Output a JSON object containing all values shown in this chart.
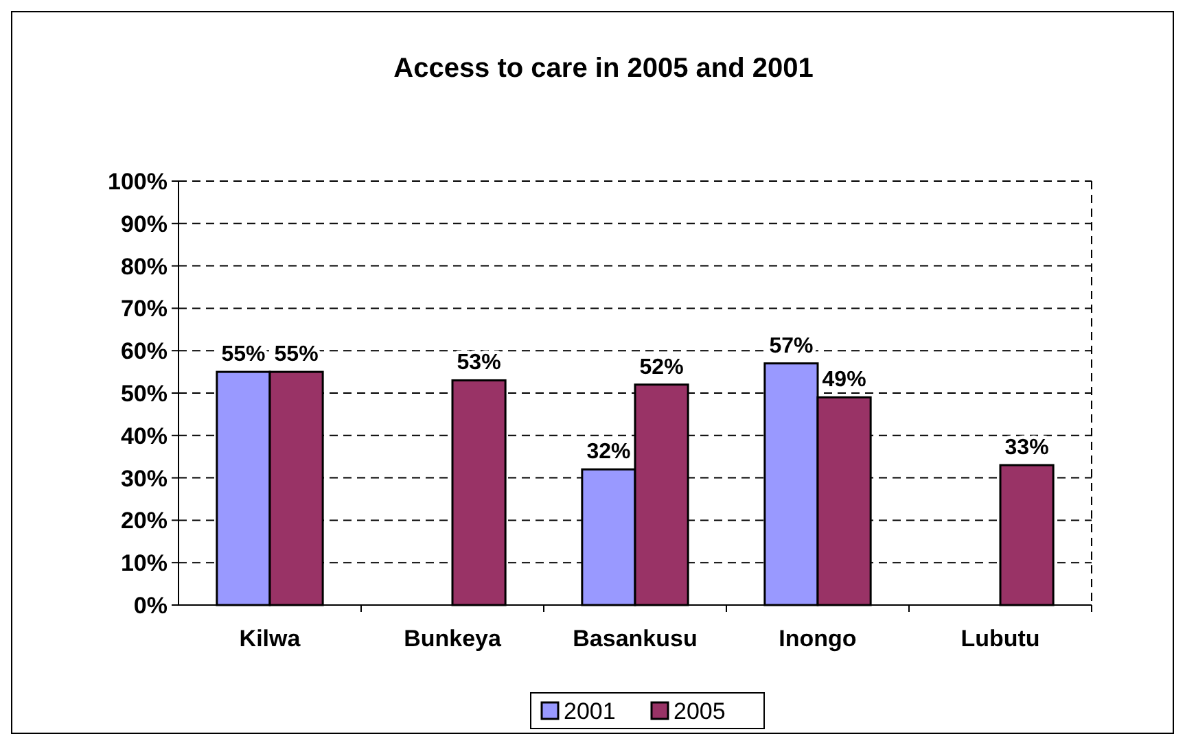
{
  "chart_data": {
    "type": "bar",
    "title": "Access to care in 2005 and 2001",
    "categories": [
      "Kilwa",
      "Bunkeya",
      "Basankusu",
      "Inongo",
      "Lubutu"
    ],
    "series": [
      {
        "name": "2001",
        "color": "#9999ff",
        "values": [
          55,
          null,
          32,
          57,
          null
        ],
        "value_labels": [
          "55%",
          null,
          "32%",
          "57%",
          null
        ]
      },
      {
        "name": "2005",
        "color": "#993366",
        "values": [
          55,
          53,
          52,
          49,
          33
        ],
        "value_labels": [
          "55%",
          "53%",
          "52%",
          "49%",
          "33%"
        ]
      }
    ],
    "ylim": [
      0,
      100
    ],
    "yticks": [
      {
        "value": 0,
        "label": "0%"
      },
      {
        "value": 10,
        "label": "10%"
      },
      {
        "value": 20,
        "label": "20%"
      },
      {
        "value": 30,
        "label": "30%"
      },
      {
        "value": 40,
        "label": "40%"
      },
      {
        "value": 50,
        "label": "50%"
      },
      {
        "value": 60,
        "label": "60%"
      },
      {
        "value": 70,
        "label": "70%"
      },
      {
        "value": 80,
        "label": "80%"
      },
      {
        "value": 90,
        "label": "90%"
      },
      {
        "value": 100,
        "label": "100%"
      }
    ],
    "grid": "y",
    "legend": "bottom"
  }
}
